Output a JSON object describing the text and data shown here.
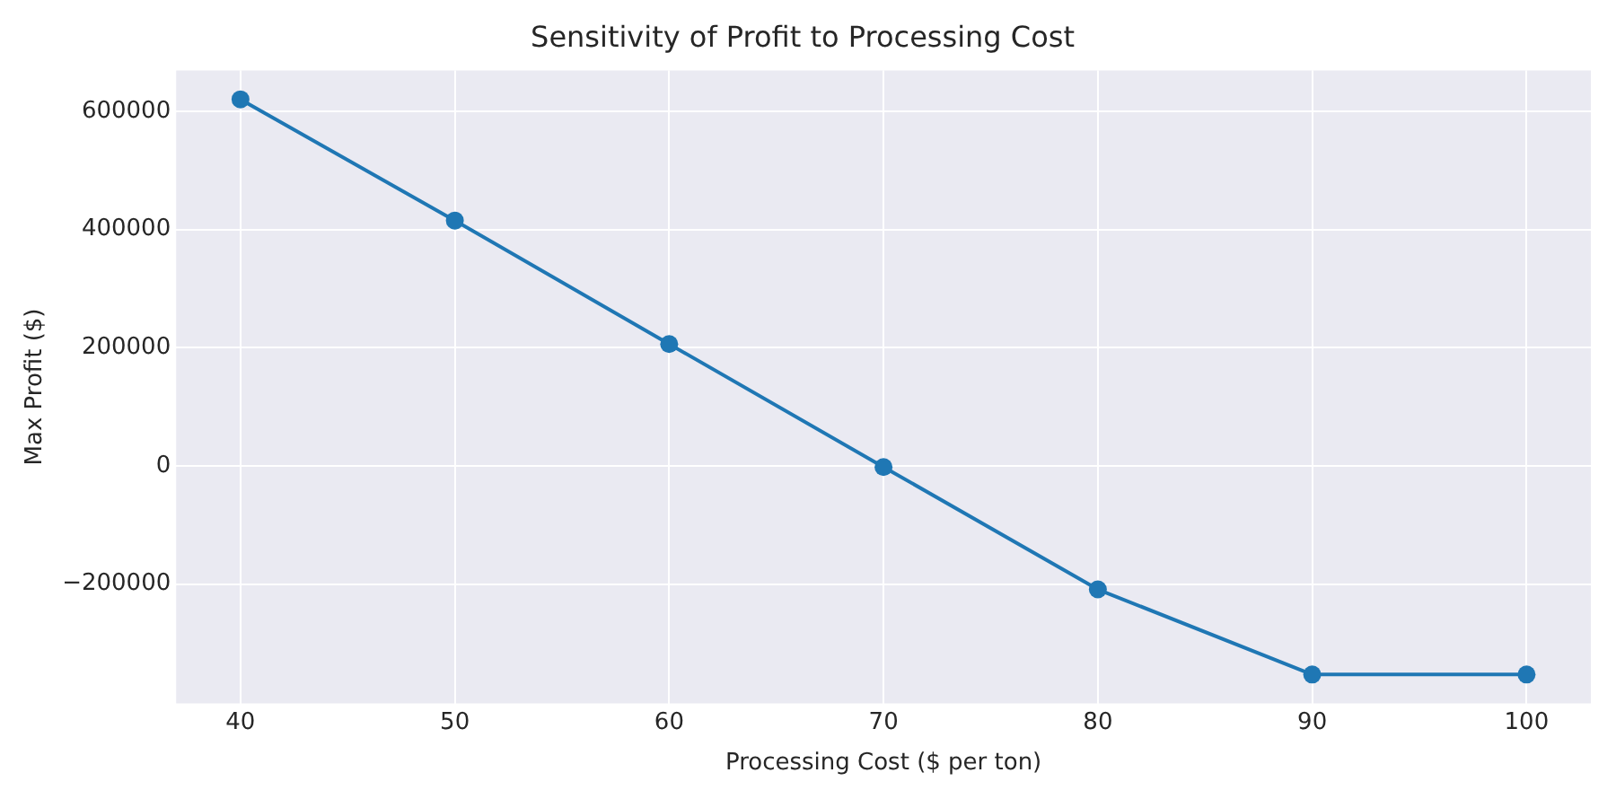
{
  "chart_data": {
    "type": "line",
    "title": "Sensitivity of Profit to Processing Cost",
    "xlabel": "Processing Cost ($ per ton)",
    "ylabel": "Max Profit ($)",
    "x": [
      40,
      50,
      60,
      70,
      80,
      90,
      100
    ],
    "series": [
      {
        "color": "#1f77b4",
        "values": [
          620000,
          415000,
          206000,
          -2000,
          -209000,
          -353000,
          -353000
        ]
      }
    ],
    "xlim": [
      37,
      103
    ],
    "xticks": [
      40,
      50,
      60,
      70,
      80,
      90,
      100
    ],
    "ylim": [
      -402000,
      669000
    ],
    "yticks": [
      {
        "value": -200000,
        "label": "−200000"
      },
      0,
      200000,
      400000,
      600000
    ],
    "grid": true,
    "marker": "circle",
    "line_style": "solid",
    "legend": false
  }
}
